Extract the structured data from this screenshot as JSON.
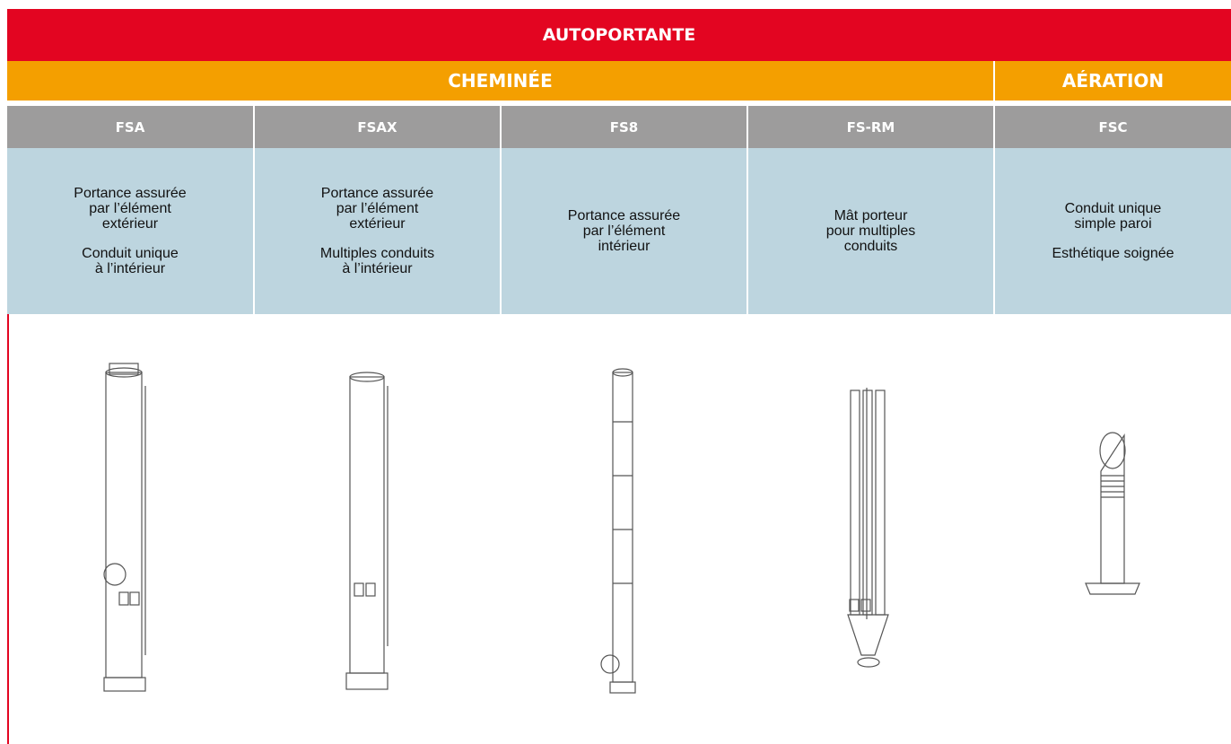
{
  "header": {
    "title": "AUTOPORTANTE"
  },
  "groups": [
    {
      "label": "CHEMINÉE"
    },
    {
      "label": "AÉRATION"
    }
  ],
  "columns": [
    {
      "name": "FSA",
      "description": [
        [
          "Portance assurée",
          "par l’élément",
          "extérieur"
        ],
        [
          "Conduit unique",
          "à l’intérieur"
        ]
      ]
    },
    {
      "name": "FSAX",
      "description": [
        [
          "Portance assurée",
          "par l’élément",
          "extérieur"
        ],
        [
          "Multiples conduits",
          "à l’intérieur"
        ]
      ]
    },
    {
      "name": "FS8",
      "description": [
        [
          "Portance assurée",
          "par l’élément",
          "intérieur"
        ]
      ]
    },
    {
      "name": "FS-RM",
      "description": [
        [
          "Mât porteur",
          "pour multiples",
          "conduits"
        ]
      ]
    },
    {
      "name": "FSC",
      "description": [
        [
          "Conduit unique",
          "simple paroi"
        ],
        [
          "Esthétique soignée"
        ]
      ]
    }
  ]
}
